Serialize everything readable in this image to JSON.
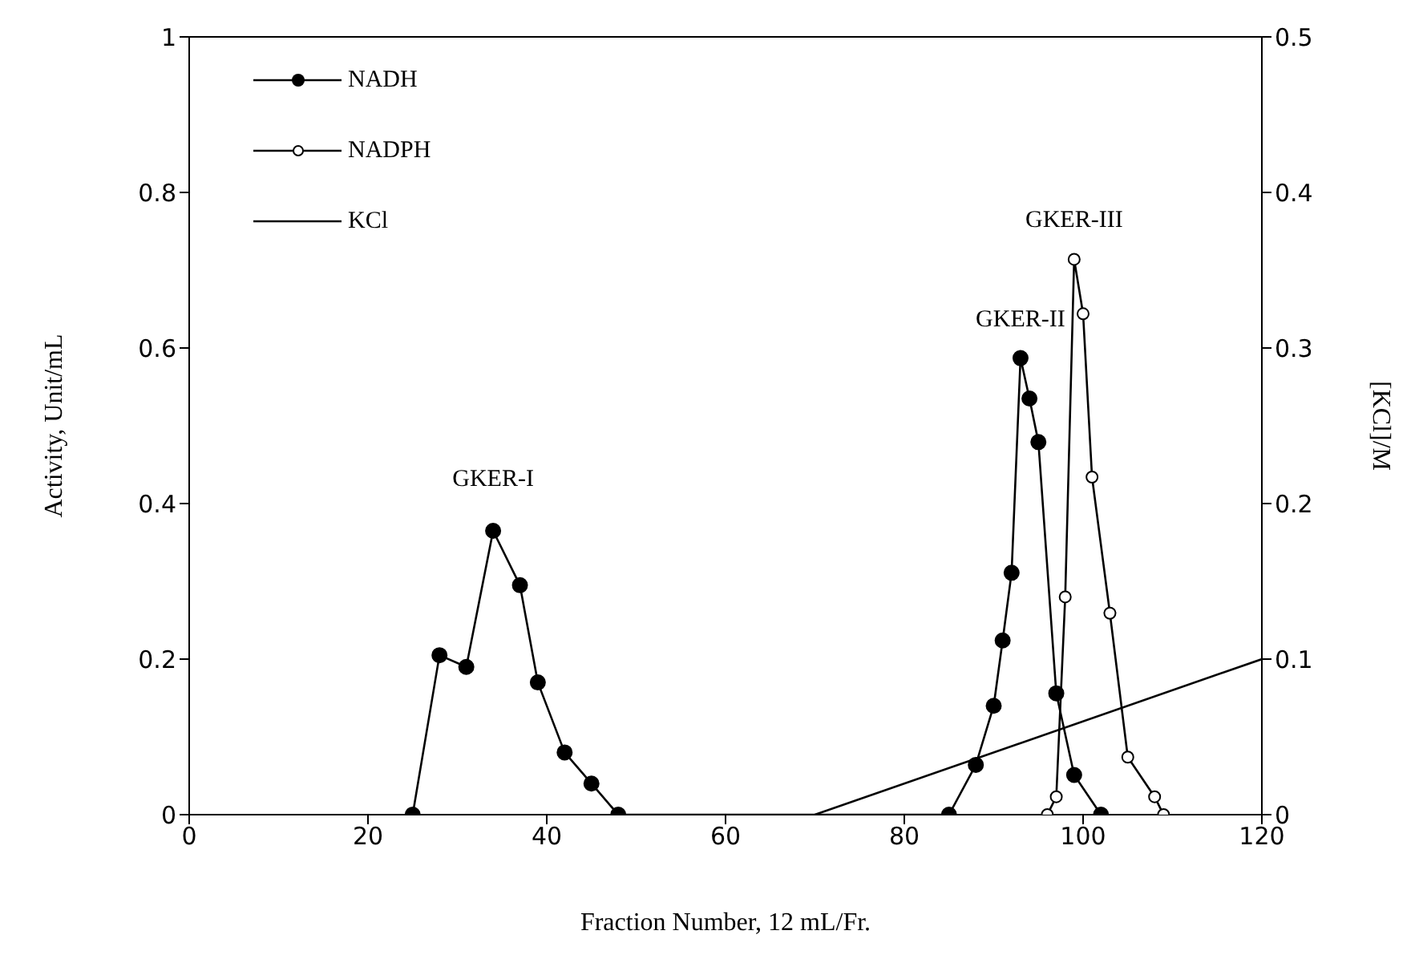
{
  "chart_data": {
    "type": "line",
    "xlabel": "Fraction Number, 12 mL/Fr.",
    "ylabel": "Activity, Unit/mL",
    "y2label": "[KCl]/M",
    "xlim": [
      0,
      120
    ],
    "xticks": [
      0,
      20,
      40,
      60,
      80,
      100,
      120
    ],
    "ylim": [
      0,
      1
    ],
    "yticks": [
      0,
      {
        "value": 0.2,
        "label": "0.2"
      },
      {
        "value": 0.4,
        "label": "0.4"
      },
      {
        "value": 0.6,
        "label": "0.6"
      },
      {
        "value": 0.8,
        "label": "0.8"
      },
      1
    ],
    "y2lim": [
      0,
      0.5
    ],
    "y2ticks": [
      0,
      {
        "value": 0.1,
        "label": "0.1"
      },
      {
        "value": 0.2,
        "label": "0.2"
      },
      {
        "value": 0.3,
        "label": "0.3"
      },
      {
        "value": 0.4,
        "label": "0.4"
      },
      {
        "value": 0.5,
        "label": "0.5"
      }
    ],
    "legend": "top left",
    "line_style": "solid",
    "series": [
      {
        "name": "NADH",
        "color": "#000000",
        "marker": "circle",
        "x": [
          25,
          28,
          31,
          34,
          37,
          39,
          42,
          45,
          48,
          85,
          88,
          90,
          91,
          92,
          93,
          94,
          95,
          97,
          99,
          102
        ],
        "values": [
          0,
          0.205,
          0.19,
          0.365,
          0.295,
          0.17,
          0.08,
          0.04,
          0,
          0,
          0.064,
          0.14,
          0.224,
          0.311,
          0.587,
          0.535,
          0.479,
          0.156,
          0.051,
          0
        ]
      },
      {
        "name": "NADPH",
        "color": "#000000",
        "marker": "open circle",
        "x": [
          96,
          97,
          98,
          99,
          100,
          101,
          103,
          105,
          108,
          109
        ],
        "values": [
          0,
          0.023,
          0.28,
          0.714,
          0.644,
          0.434,
          0.259,
          0.074,
          0.023,
          0
        ]
      },
      {
        "name": "KCl",
        "color": "#000000",
        "marker": "none",
        "axis": "y2",
        "x": [
          70,
          120
        ],
        "values": [
          0,
          0.1
        ]
      }
    ],
    "annotations": [
      {
        "text": "GKER-I",
        "x": 34,
        "y": 0.365
      },
      {
        "text": "GKER-II",
        "x": 93,
        "y": 0.587
      },
      {
        "text": "GKER-III",
        "x": 99,
        "y": 0.714
      }
    ]
  }
}
